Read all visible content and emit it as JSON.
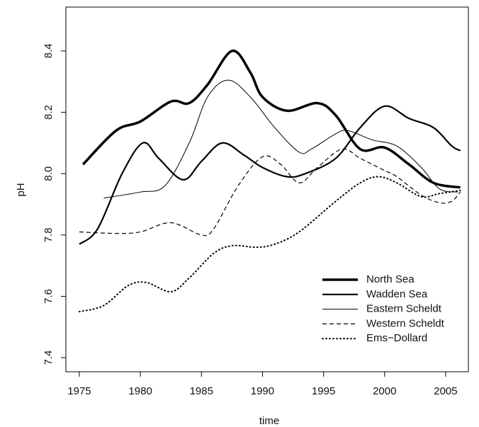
{
  "chart_data": {
    "type": "line",
    "x_label": "time",
    "y_label": "pH",
    "xlim": [
      1973.9,
      2006.86
    ],
    "ylim": [
      7.354,
      8.543
    ],
    "xticks": [
      1975,
      1980,
      1985,
      1990,
      1995,
      2000,
      2005
    ],
    "yticks": [
      7.4,
      7.6,
      7.8,
      {
        "value": 8,
        "label": "8.0"
      },
      8.2,
      8.4
    ],
    "grid": false,
    "legend": "bottom-right",
    "series": [
      {
        "name": "North Sea",
        "color": "#000000",
        "line_width": 3.5,
        "style": "solid",
        "x": [
          1975.3,
          1978,
          1980,
          1982.5,
          1984,
          1985.5,
          1987.5,
          1989,
          1990,
          1992,
          1994.5,
          1996,
          1998,
          2000,
          2002,
          2004,
          2006.2
        ],
        "values": [
          8.03,
          8.14,
          8.17,
          8.235,
          8.23,
          8.29,
          8.4,
          8.33,
          8.25,
          8.205,
          8.23,
          8.19,
          8.08,
          8.085,
          8.03,
          7.97,
          7.955
        ]
      },
      {
        "name": "Wadden Sea",
        "color": "#000000",
        "line_width": 2.2,
        "style": "solid",
        "x": [
          1975,
          1976.5,
          1978.5,
          1980.2,
          1981.5,
          1983.5,
          1985,
          1986.7,
          1988.5,
          1990,
          1992,
          1993.5,
          1996,
          1998,
          2000,
          2002,
          2004,
          2005.5,
          2006.2
        ],
        "values": [
          7.77,
          7.82,
          8.0,
          8.1,
          8.05,
          7.98,
          8.04,
          8.1,
          8.06,
          8.02,
          7.99,
          8.0,
          8.05,
          8.15,
          8.22,
          8.18,
          8.15,
          8.09,
          8.075
        ]
      },
      {
        "name": "Eastern Scheldt",
        "color": "#000000",
        "line_width": 1,
        "style": "solid",
        "x": [
          1977,
          1980,
          1982,
          1984,
          1985.5,
          1987.2,
          1989,
          1991,
          1993,
          1994,
          1996,
          1997,
          1999,
          2001,
          2003,
          2004.5,
          2006
        ],
        "values": [
          7.92,
          7.94,
          7.96,
          8.1,
          8.25,
          8.305,
          8.25,
          8.15,
          8.07,
          8.08,
          8.13,
          8.14,
          8.11,
          8.09,
          8.02,
          7.95,
          7.94
        ]
      },
      {
        "name": "Western Scheldt",
        "color": "#000000",
        "line_width": 1.2,
        "style": "dashed",
        "x": [
          1975,
          1978,
          1980,
          1982.5,
          1985,
          1986,
          1988,
          1990,
          1991.5,
          1993,
          1994.5,
          1996.5,
          1998,
          2000,
          2001,
          2003,
          2004.5,
          2005.5,
          2006.2
        ],
        "values": [
          7.81,
          7.805,
          7.81,
          7.84,
          7.8,
          7.82,
          7.96,
          8.055,
          8.03,
          7.97,
          8.02,
          8.08,
          8.05,
          8.01,
          7.99,
          7.93,
          7.905,
          7.91,
          7.94
        ]
      },
      {
        "name": "Ems−Dollard",
        "color": "#000000",
        "line_width": 2,
        "style": "dotted",
        "x": [
          1975,
          1977,
          1979,
          1980.5,
          1982.5,
          1984,
          1986,
          1987.5,
          1989.5,
          1991,
          1993,
          1996,
          1998,
          1999.5,
          2001,
          2003,
          2004.5,
          2006.2
        ],
        "values": [
          7.55,
          7.57,
          7.635,
          7.645,
          7.615,
          7.66,
          7.74,
          7.765,
          7.76,
          7.77,
          7.81,
          7.91,
          7.97,
          7.99,
          7.97,
          7.925,
          7.935,
          7.945
        ]
      }
    ]
  }
}
